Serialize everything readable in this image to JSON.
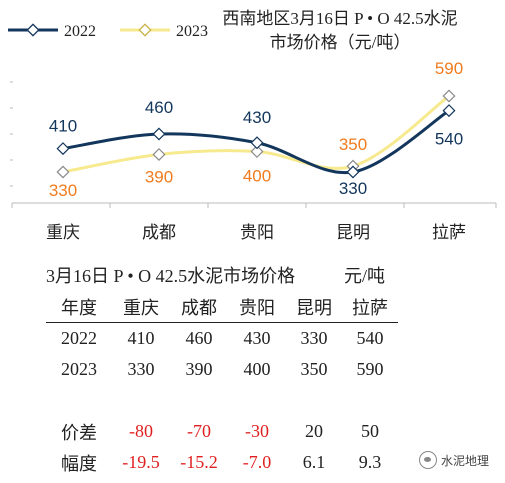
{
  "chart_data": {
    "type": "line",
    "title": "西南地区3月16日 P·O 42.5水泥市场价格（元/吨）",
    "title_lines": [
      "西南地区3月16日  P • O 42.5水泥",
      "市场价格（元/吨）"
    ],
    "categories": [
      "重庆",
      "成都",
      "贵阳",
      "昆明",
      "拉萨"
    ],
    "series": [
      {
        "name": "2022",
        "values": [
          410,
          460,
          430,
          330,
          540
        ],
        "color": "#13365c",
        "label_color": "#13365c"
      },
      {
        "name": "2023",
        "values": [
          330,
          390,
          400,
          350,
          590
        ],
        "color": "#f7ea8e",
        "label_color": "#f07c1f"
      }
    ],
    "legend_position": "top-left",
    "grid": false
  },
  "table": {
    "title": "3月16日 P • O 42.5水泥市场价格",
    "unit": "元/吨",
    "headers": [
      "年度",
      "重庆",
      "成都",
      "贵阳",
      "昆明",
      "拉萨"
    ],
    "rows": [
      [
        "2022",
        "410",
        "460",
        "430",
        "330",
        "540"
      ],
      [
        "2023",
        "330",
        "390",
        "400",
        "350",
        "590"
      ]
    ],
    "diff_label": "价差",
    "diff": [
      "-80",
      "-70",
      "-30",
      "20",
      "50"
    ],
    "pct_label": "幅度",
    "pct": [
      "-19.5",
      "-15.2",
      "-7.0",
      "6.1",
      "9.3"
    ]
  },
  "watermark": "水泥地理"
}
